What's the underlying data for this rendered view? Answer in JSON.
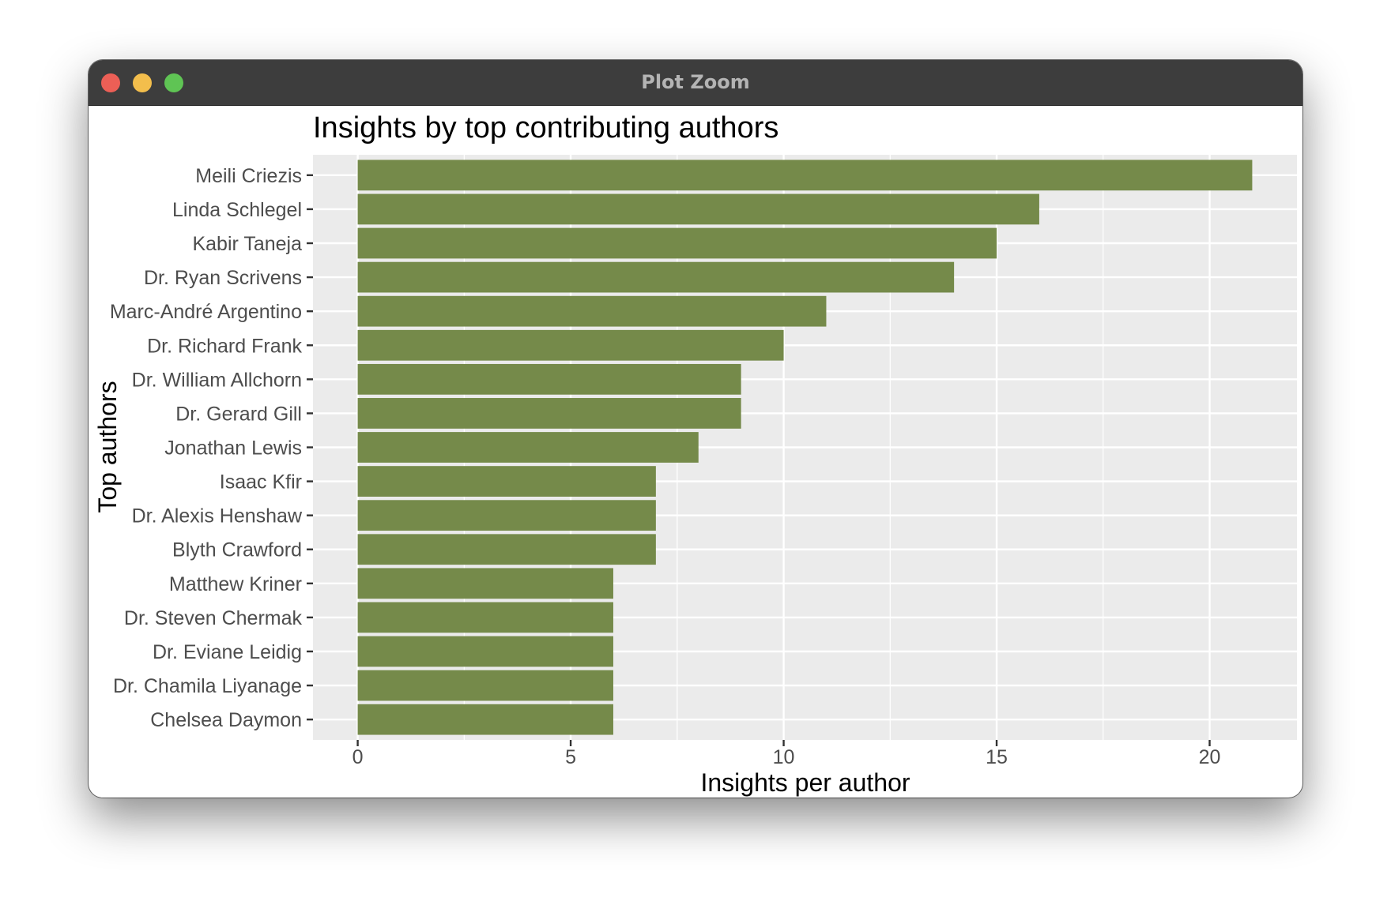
{
  "window": {
    "title": "Plot Zoom"
  },
  "colors": {
    "bar": "#758a4a",
    "panel": "#ebebeb",
    "grid": "#ffffff"
  },
  "chart_data": {
    "type": "bar",
    "orientation": "horizontal",
    "title": "Insights by top contributing authors",
    "xlabel": "Insights per author",
    "ylabel": "Top authors",
    "categories": [
      "Meili Criezis",
      "Linda Schlegel",
      "Kabir Taneja",
      "Dr. Ryan Scrivens",
      "Marc-André Argentino",
      "Dr. Richard Frank",
      "Dr. William Allchorn",
      "Dr. Gerard Gill",
      "Jonathan Lewis",
      "Isaac Kfir",
      "Dr. Alexis Henshaw",
      "Blyth Crawford",
      "Matthew Kriner",
      "Dr. Steven Chermak",
      "Dr. Eviane Leidig",
      "Dr. Chamila Liyanage",
      "Chelsea Daymon"
    ],
    "values": [
      21,
      16,
      15,
      14,
      11,
      10,
      9,
      9,
      8,
      7,
      7,
      7,
      6,
      6,
      6,
      6,
      6
    ],
    "xlim": [
      -1.05,
      22.05
    ],
    "xticks": [
      "0",
      "5",
      "10",
      "15",
      "20"
    ],
    "grid": true,
    "legend": "none"
  }
}
